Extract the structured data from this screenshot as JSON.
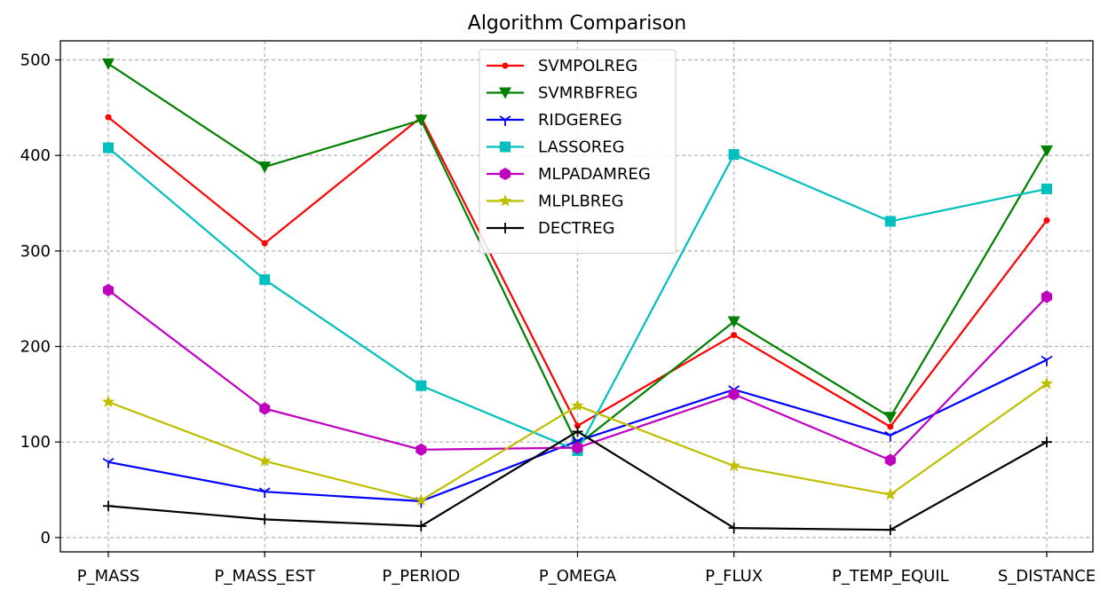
{
  "chart_data": {
    "type": "line",
    "title": "Algorithm Comparison",
    "xlabel": "",
    "ylabel": "",
    "categories": [
      "P_MASS",
      "P_MASS_EST",
      "P_PERIOD",
      "P_OMEGA",
      "P_FLUX",
      "P_TEMP_EQUIL",
      "S_DISTANCE"
    ],
    "ylim": [
      -15,
      520
    ],
    "yticks": [
      0,
      100,
      200,
      300,
      400,
      500
    ],
    "grid": true,
    "legend_position": "top-center",
    "series": [
      {
        "name": "SVMPOLREG",
        "color": "#ff0000",
        "marker": "point",
        "values": [
          440,
          308,
          440,
          117,
          212,
          116,
          332
        ]
      },
      {
        "name": "SVMRBFREG",
        "color": "#008000",
        "marker": "triangle",
        "values": [
          496,
          388,
          437,
          97,
          226,
          126,
          405
        ]
      },
      {
        "name": "RIDGEREG",
        "color": "#0000ff",
        "marker": "tri-down",
        "values": [
          79,
          48,
          38,
          101,
          155,
          107,
          186
        ]
      },
      {
        "name": "LASSOREG",
        "color": "#00bfbf",
        "marker": "square",
        "values": [
          408,
          270,
          159,
          91,
          401,
          331,
          365
        ]
      },
      {
        "name": "MLPADAMREG",
        "color": "#bf00bf",
        "marker": "hexagon",
        "values": [
          259,
          135,
          92,
          94,
          150,
          81,
          252
        ]
      },
      {
        "name": "MLPLBREG",
        "color": "#bfbf00",
        "marker": "star",
        "values": [
          142,
          80,
          39,
          138,
          75,
          45,
          161
        ]
      },
      {
        "name": "DECTREG",
        "color": "#000000",
        "marker": "plus",
        "values": [
          33,
          19,
          12,
          111,
          10,
          8,
          100
        ]
      }
    ]
  }
}
